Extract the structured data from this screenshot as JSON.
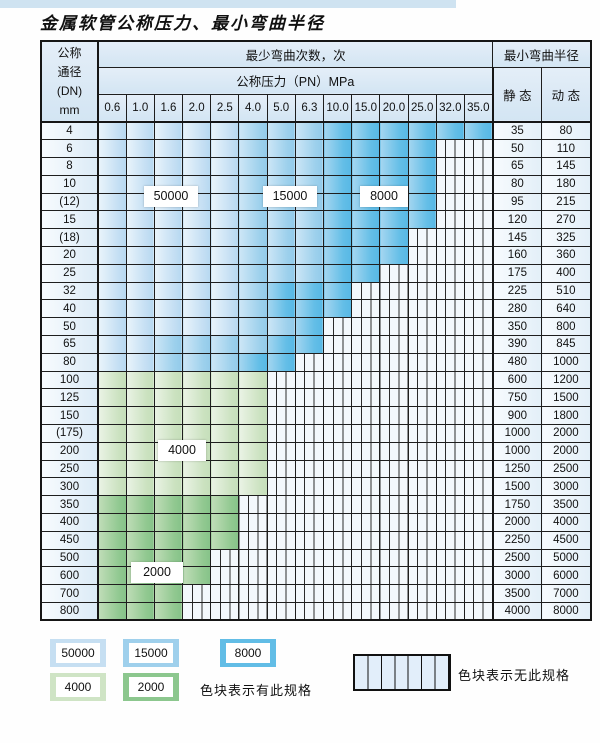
{
  "title": "金属软管公称压力、最小弯曲半径",
  "table": {
    "header": {
      "dn_lines": [
        "公称",
        "通径",
        "(DN)",
        "mm"
      ],
      "bend_cycles": "最少弯曲次数，次",
      "min_radius": "最小弯曲半径",
      "pressure": "公称压力（PN）MPa",
      "pressures": [
        "0.6",
        "1.0",
        "1.6",
        "2.0",
        "2.5",
        "4.0",
        "5.0",
        "6.3",
        "10.0",
        "15.0",
        "20.0",
        "25.0",
        "32.0",
        "35.0"
      ],
      "static": "静 态",
      "dynamic": "动 态"
    },
    "cycle_color_key": {
      "L": {
        "cycles": "50000",
        "color": "#c6dff2"
      },
      "M": {
        "cycles": "15000",
        "color": "#9fd0ec"
      },
      "D": {
        "cycles": "8000",
        "color": "#62bde6"
      },
      "g": {
        "cycles": "4000",
        "color": "#cfe4c5"
      },
      "G": {
        "cycles": "2000",
        "color": "#8cc78e"
      },
      "X": {
        "cycles": "no-spec",
        "color": "striped"
      }
    },
    "rows": [
      {
        "dn": "4",
        "cells": "LLLLLMMMDDDDDD",
        "static": "35",
        "dynamic": "80"
      },
      {
        "dn": "6",
        "cells": "LLLLLMMMDDDDXX",
        "static": "50",
        "dynamic": "110"
      },
      {
        "dn": "8",
        "cells": "LLLLLMMMDDDDXX",
        "static": "65",
        "dynamic": "145"
      },
      {
        "dn": "10",
        "cells": "LLLLLMMMDDDDXX",
        "static": "80",
        "dynamic": "180"
      },
      {
        "dn": "(12)",
        "cells": "LLLLLMMMDDDDXX",
        "static": "95",
        "dynamic": "215"
      },
      {
        "dn": "15",
        "cells": "LLLLLMMMDDDDXX",
        "static": "120",
        "dynamic": "270"
      },
      {
        "dn": "(18)",
        "cells": "LLLLLMMMDDDXXX",
        "static": "145",
        "dynamic": "325"
      },
      {
        "dn": "20",
        "cells": "LLLLLMMMDDDXXX",
        "static": "160",
        "dynamic": "360"
      },
      {
        "dn": "25",
        "cells": "LLLLLMMMDDXXXX",
        "static": "175",
        "dynamic": "400"
      },
      {
        "dn": "32",
        "cells": "LLLLLMDDDXXXXX",
        "static": "225",
        "dynamic": "510"
      },
      {
        "dn": "40",
        "cells": "LLLLLMDDDXXXXX",
        "static": "280",
        "dynamic": "640"
      },
      {
        "dn": "50",
        "cells": "LLLLLMMDXXXXXX",
        "static": "350",
        "dynamic": "800"
      },
      {
        "dn": "65",
        "cells": "LLMMMMDDXXXXXX",
        "static": "390",
        "dynamic": "845"
      },
      {
        "dn": "80",
        "cells": "LLMMMDDXXXXXXX",
        "static": "480",
        "dynamic": "1000"
      },
      {
        "dn": "100",
        "cells": "ggggggXXXXXXXX",
        "static": "600",
        "dynamic": "1200"
      },
      {
        "dn": "125",
        "cells": "ggggggXXXXXXXX",
        "static": "750",
        "dynamic": "1500"
      },
      {
        "dn": "150",
        "cells": "ggggggXXXXXXXX",
        "static": "900",
        "dynamic": "1800"
      },
      {
        "dn": "(175)",
        "cells": "ggggggXXXXXXXX",
        "static": "1000",
        "dynamic": "2000"
      },
      {
        "dn": "200",
        "cells": "ggggggXXXXXXXX",
        "static": "1000",
        "dynamic": "2000"
      },
      {
        "dn": "250",
        "cells": "ggggggXXXXXXXX",
        "static": "1250",
        "dynamic": "2500"
      },
      {
        "dn": "300",
        "cells": "ggggggXXXXXXXX",
        "static": "1500",
        "dynamic": "3000"
      },
      {
        "dn": "350",
        "cells": "GGGGGXXXXXXXXX",
        "static": "1750",
        "dynamic": "3500"
      },
      {
        "dn": "400",
        "cells": "GGGGGXXXXXXXXX",
        "static": "2000",
        "dynamic": "4000"
      },
      {
        "dn": "450",
        "cells": "GGGGGXXXXXXXXX",
        "static": "2250",
        "dynamic": "4500"
      },
      {
        "dn": "500",
        "cells": "GGGGXXXXXXXXXX",
        "static": "2500",
        "dynamic": "5000"
      },
      {
        "dn": "600",
        "cells": "GGGGXXXXXXXXXX",
        "static": "3000",
        "dynamic": "6000"
      },
      {
        "dn": "700",
        "cells": "GGGXXXXXXXXXXX",
        "static": "3500",
        "dynamic": "7000"
      },
      {
        "dn": "800",
        "cells": "GGGXXXXXXXXXXX",
        "static": "4000",
        "dynamic": "8000"
      }
    ],
    "overlay_labels": {
      "l50000": "50000",
      "l15000": "15000",
      "l8000": "8000",
      "l4000": "4000",
      "l2000": "2000"
    }
  },
  "legend": {
    "items": [
      {
        "label": "50000"
      },
      {
        "label": "15000"
      },
      {
        "label": "8000"
      },
      {
        "label": "4000"
      },
      {
        "label": "2000"
      }
    ],
    "has_spec_note": "色块表示有此规格",
    "no_spec_note": "色块表示无此规格"
  }
}
